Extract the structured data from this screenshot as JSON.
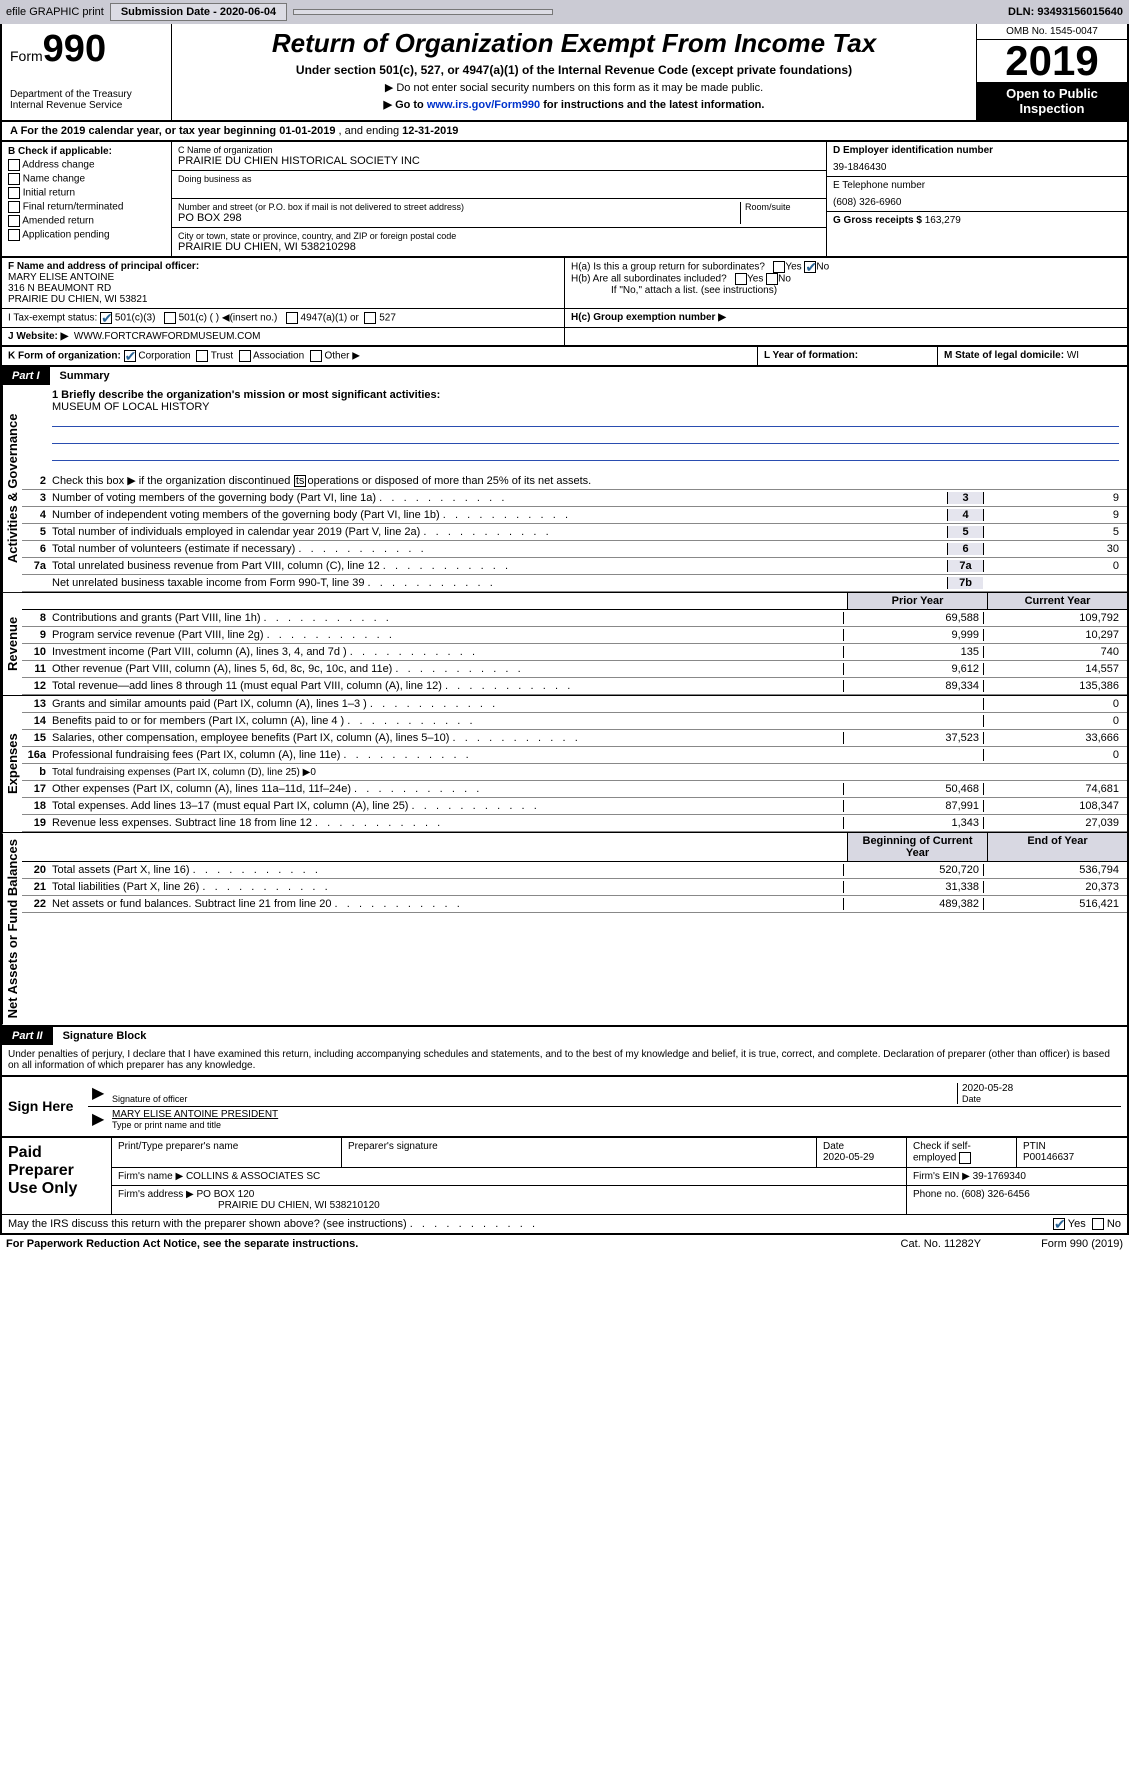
{
  "topbar": {
    "efile": "efile GRAPHIC print",
    "submission_label": "Submission Date - 2020-06-04",
    "dln": "DLN: 93493156015640"
  },
  "header": {
    "form_word": "Form",
    "form_num": "990",
    "dept": "Department of the Treasury\nInternal Revenue Service",
    "title": "Return of Organization Exempt From Income Tax",
    "subtitle": "Under section 501(c), 527, or 4947(a)(1) of the Internal Revenue Code (except private foundations)",
    "note1": "▶ Do not enter social security numbers on this form as it may be made public.",
    "note2_pre": "▶ Go to ",
    "note2_link": "www.irs.gov/Form990",
    "note2_post": " for instructions and the latest information.",
    "omb": "OMB No. 1545-0047",
    "year": "2019",
    "open": "Open to Public Inspection"
  },
  "lineA": {
    "text_pre": "A For the 2019 calendar year, or tax year beginning ",
    "begin": "01-01-2019",
    "mid": " , and ending ",
    "end": "12-31-2019"
  },
  "colB": {
    "label": "B Check if applicable:",
    "items": [
      "Address change",
      "Name change",
      "Initial return",
      "Final return/terminated",
      "Amended return",
      "Application pending"
    ]
  },
  "colC": {
    "name_label": "C Name of organization",
    "name": "PRAIRIE DU CHIEN HISTORICAL SOCIETY INC",
    "dba_label": "Doing business as",
    "addr_label": "Number and street (or P.O. box if mail is not delivered to street address)",
    "room_label": "Room/suite",
    "addr": "PO BOX 298",
    "city_label": "City or town, state or province, country, and ZIP or foreign postal code",
    "city": "PRAIRIE DU CHIEN, WI  538210298"
  },
  "colD": {
    "ein_label": "D Employer identification number",
    "ein": "39-1846430",
    "phone_label": "E Telephone number",
    "phone": "(608) 326-6960",
    "gross_label": "G Gross receipts $ ",
    "gross": "163,279"
  },
  "rowF": {
    "label": "F Name and address of principal officer:",
    "name": "MARY ELISE ANTOINE",
    "addr1": "316 N BEAUMONT RD",
    "addr2": "PRAIRIE DU CHIEN, WI  53821"
  },
  "rowH": {
    "ha": "H(a)  Is this a group return for subordinates?",
    "hb": "H(b)  Are all subordinates included?",
    "hb_note": "If \"No,\" attach a list. (see instructions)",
    "hc": "H(c)  Group exemption number ▶"
  },
  "rowI": {
    "label": "I   Tax-exempt status:",
    "opts": [
      "501(c)(3)",
      "501(c) (   ) ◀(insert no.)",
      "4947(a)(1) or",
      "527"
    ]
  },
  "rowJ": {
    "label": "J    Website: ▶",
    "val": "WWW.FORTCRAWFORDMUSEUM.COM"
  },
  "rowK": {
    "label": "K Form of organization:",
    "opts": [
      "Corporation",
      "Trust",
      "Association",
      "Other ▶"
    ]
  },
  "rowL": {
    "label": "L Year of formation:"
  },
  "rowM": {
    "label": "M State of legal domicile: ",
    "val": "WI"
  },
  "part1": {
    "num": "Part I",
    "title": "Summary",
    "q1_label": "1  Briefly describe the organization's mission or most significant activities:",
    "q1_val": "MUSEUM OF LOCAL HISTORY",
    "q2": "Check this box ▶        if the organization discontinued its operations or disposed of more than 25% of its net assets.",
    "sections": {
      "gov": "Activities & Governance",
      "rev": "Revenue",
      "exp": "Expenses",
      "net": "Net Assets or Fund Balances"
    },
    "col_prior": "Prior Year",
    "col_curr": "Current Year",
    "col_beg": "Beginning of Current Year",
    "col_end": "End of Year",
    "lines_gov": [
      {
        "n": "3",
        "t": "Number of voting members of the governing body (Part VI, line 1a)",
        "b": "3",
        "v": "9"
      },
      {
        "n": "4",
        "t": "Number of independent voting members of the governing body (Part VI, line 1b)",
        "b": "4",
        "v": "9"
      },
      {
        "n": "5",
        "t": "Total number of individuals employed in calendar year 2019 (Part V, line 2a)",
        "b": "5",
        "v": "5"
      },
      {
        "n": "6",
        "t": "Total number of volunteers (estimate if necessary)",
        "b": "6",
        "v": "30"
      },
      {
        "n": "7a",
        "t": "Total unrelated business revenue from Part VIII, column (C), line 12",
        "b": "7a",
        "v": "0"
      },
      {
        "n": "",
        "t": "Net unrelated business taxable income from Form 990-T, line 39",
        "b": "7b",
        "v": ""
      }
    ],
    "lines_rev": [
      {
        "n": "8",
        "t": "Contributions and grants (Part VIII, line 1h)",
        "p": "69,588",
        "c": "109,792"
      },
      {
        "n": "9",
        "t": "Program service revenue (Part VIII, line 2g)",
        "p": "9,999",
        "c": "10,297"
      },
      {
        "n": "10",
        "t": "Investment income (Part VIII, column (A), lines 3, 4, and 7d )",
        "p": "135",
        "c": "740"
      },
      {
        "n": "11",
        "t": "Other revenue (Part VIII, column (A), lines 5, 6d, 8c, 9c, 10c, and 11e)",
        "p": "9,612",
        "c": "14,557"
      },
      {
        "n": "12",
        "t": "Total revenue—add lines 8 through 11 (must equal Part VIII, column (A), line 12)",
        "p": "89,334",
        "c": "135,386"
      }
    ],
    "lines_exp": [
      {
        "n": "13",
        "t": "Grants and similar amounts paid (Part IX, column (A), lines 1–3 )",
        "p": "",
        "c": "0"
      },
      {
        "n": "14",
        "t": "Benefits paid to or for members (Part IX, column (A), line 4 )",
        "p": "",
        "c": "0"
      },
      {
        "n": "15",
        "t": "Salaries, other compensation, employee benefits (Part IX, column (A), lines 5–10)",
        "p": "37,523",
        "c": "33,666"
      },
      {
        "n": "16a",
        "t": "Professional fundraising fees (Part IX, column (A), line 11e)",
        "p": "",
        "c": "0"
      },
      {
        "n": "b",
        "t": "Total fundraising expenses (Part IX, column (D), line 25) ▶0",
        "p": "—",
        "c": "—"
      },
      {
        "n": "17",
        "t": "Other expenses (Part IX, column (A), lines 11a–11d, 11f–24e)",
        "p": "50,468",
        "c": "74,681"
      },
      {
        "n": "18",
        "t": "Total expenses. Add lines 13–17 (must equal Part IX, column (A), line 25)",
        "p": "87,991",
        "c": "108,347"
      },
      {
        "n": "19",
        "t": "Revenue less expenses. Subtract line 18 from line 12",
        "p": "1,343",
        "c": "27,039"
      }
    ],
    "lines_net": [
      {
        "n": "20",
        "t": "Total assets (Part X, line 16)",
        "p": "520,720",
        "c": "536,794"
      },
      {
        "n": "21",
        "t": "Total liabilities (Part X, line 26)",
        "p": "31,338",
        "c": "20,373"
      },
      {
        "n": "22",
        "t": "Net assets or fund balances. Subtract line 21 from line 20",
        "p": "489,382",
        "c": "516,421"
      }
    ]
  },
  "part2": {
    "num": "Part II",
    "title": "Signature Block",
    "perjury": "Under penalties of perjury, I declare that I have examined this return, including accompanying schedules and statements, and to the best of my knowledge and belief, it is true, correct, and complete. Declaration of preparer (other than officer) is based on all information of which preparer has any knowledge.",
    "sign_here": "Sign Here",
    "sig_officer": "Signature of officer",
    "sig_date": "2020-05-28",
    "sig_date_label": "Date",
    "sig_name": "MARY ELISE ANTOINE  PRESIDENT",
    "sig_name_label": "Type or print name and title"
  },
  "paid": {
    "title": "Paid Preparer Use Only",
    "col1": "Print/Type preparer's name",
    "col2": "Preparer's signature",
    "col3_label": "Date",
    "col3": "2020-05-29",
    "col4": "Check        if self-employed",
    "col5_label": "PTIN",
    "col5": "P00146637",
    "firm_name_label": "Firm's name      ▶",
    "firm_name": "COLLINS & ASSOCIATES SC",
    "firm_ein_label": "Firm's EIN ▶",
    "firm_ein": "39-1769340",
    "firm_addr_label": "Firm's address ▶",
    "firm_addr1": "PO BOX 120",
    "firm_addr2": "PRAIRIE DU CHIEN, WI  538210120",
    "firm_phone_label": "Phone no. ",
    "firm_phone": "(608) 326-6456"
  },
  "footer": {
    "discuss": "May the IRS discuss this return with the preparer shown above? (see instructions)",
    "paperwork": "For Paperwork Reduction Act Notice, see the separate instructions.",
    "cat": "Cat. No. 11282Y",
    "form": "Form 990 (2019)"
  }
}
